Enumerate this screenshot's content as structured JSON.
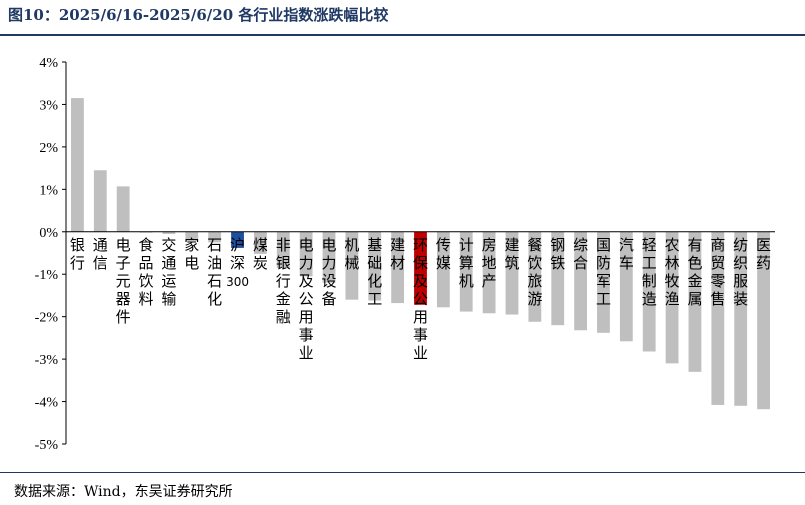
{
  "title": "图10：2025/6/16-2025/6/20 各行业指数涨跌幅比较",
  "source": "数据来源：Wind，东吴证券研究所",
  "colors": {
    "default": "#bfbfbf",
    "highlight_blue": "#1f4e9c",
    "highlight_red": "#c00000",
    "axis": "#000000",
    "title": "#1f3864"
  },
  "chart_data": {
    "type": "bar",
    "title": "",
    "xlabel": "",
    "ylabel": "",
    "ylim": [
      -5,
      4
    ],
    "yticks": [
      "-5%",
      "-4%",
      "-3%",
      "-2%",
      "-1%",
      "0%",
      "1%",
      "2%",
      "3%",
      "4%"
    ],
    "ytick_values": [
      -5,
      -4,
      -3,
      -2,
      -1,
      0,
      1,
      2,
      3,
      4
    ],
    "grid": false,
    "legend": "none",
    "categories": [
      "银行",
      "通信",
      "电子元器件",
      "食品饮料",
      "交通运输",
      "家电",
      "石油石化",
      "沪深300",
      "煤炭",
      "非银行金融",
      "电力及公用事业",
      "电力设备",
      "机械",
      "基础化工",
      "建材",
      "环保及公用事业",
      "传媒",
      "计算机",
      "房地产",
      "建筑",
      "餐饮旅游",
      "钢铁",
      "综合",
      "国防军工",
      "汽车",
      "轻工制造",
      "农林牧渔",
      "有色金属",
      "商贸零售",
      "纺织服装",
      "医药"
    ],
    "values": [
      3.15,
      1.45,
      1.07,
      -0.02,
      -0.05,
      -0.22,
      -0.25,
      -0.38,
      -0.52,
      -0.85,
      -1.05,
      -1.2,
      -1.6,
      -1.62,
      -1.68,
      -1.72,
      -1.78,
      -1.88,
      -1.92,
      -1.95,
      -2.12,
      -2.2,
      -2.32,
      -2.38,
      -2.58,
      -2.82,
      -3.1,
      -3.3,
      -4.08,
      -4.1,
      -4.18
    ],
    "highlight": {
      "沪深300": "blue",
      "环保及公用事业": "red"
    }
  }
}
